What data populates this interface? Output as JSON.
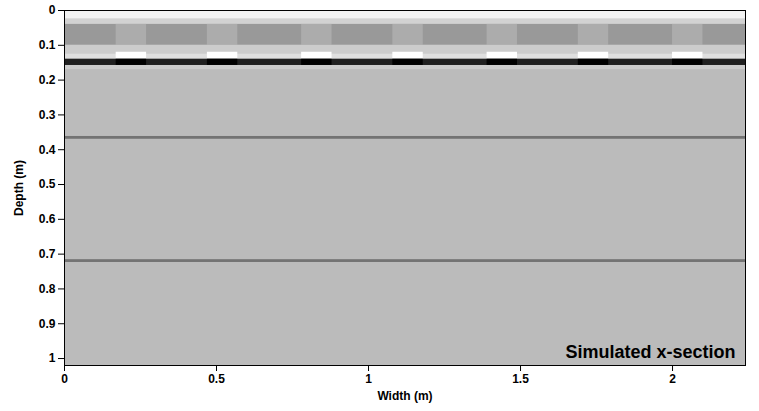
{
  "chart_data": {
    "type": "heatmap",
    "annotation": "Simulated x-section",
    "xlabel": "Width (m)",
    "ylabel": "Depth (m)",
    "xlim": [
      0,
      2.24
    ],
    "ylim": [
      0,
      1.02
    ],
    "xticks": [
      0,
      0.5,
      1,
      1.5,
      2
    ],
    "yticks": [
      0,
      0.1,
      0.2,
      0.3,
      0.4,
      0.5,
      0.6,
      0.7,
      0.8,
      0.9,
      1
    ],
    "value_range": [
      -1,
      1
    ],
    "cells": [
      {
        "x": [
          0,
          2.24
        ],
        "y": [
          0,
          1.02
        ],
        "value": 0.47
      },
      {
        "x": [
          0,
          2.24
        ],
        "y": [
          0,
          0.025
        ],
        "value": 0.9
      },
      {
        "x": [
          0,
          2.24
        ],
        "y": [
          0.025,
          0.04
        ],
        "value": 0.65
      },
      {
        "x": [
          0,
          2.24
        ],
        "y": [
          0.04,
          0.1
        ],
        "value": 0.2
      },
      {
        "x": [
          0.17,
          0.27
        ],
        "y": [
          0.04,
          0.1
        ],
        "value": 0.35
      },
      {
        "x": [
          0.47,
          0.57
        ],
        "y": [
          0.04,
          0.1
        ],
        "value": 0.35
      },
      {
        "x": [
          0.78,
          0.88
        ],
        "y": [
          0.04,
          0.1
        ],
        "value": 0.35
      },
      {
        "x": [
          1.08,
          1.18
        ],
        "y": [
          0.04,
          0.1
        ],
        "value": 0.35
      },
      {
        "x": [
          1.39,
          1.49
        ],
        "y": [
          0.04,
          0.1
        ],
        "value": 0.35
      },
      {
        "x": [
          1.69,
          1.79
        ],
        "y": [
          0.04,
          0.1
        ],
        "value": 0.35
      },
      {
        "x": [
          2.0,
          2.1
        ],
        "y": [
          0.04,
          0.1
        ],
        "value": 0.35
      },
      {
        "x": [
          0,
          2.24
        ],
        "y": [
          0.1,
          0.125
        ],
        "value": 0.6
      },
      {
        "x": [
          0,
          2.24
        ],
        "y": [
          0.125,
          0.14
        ],
        "value": 0.75
      },
      {
        "x": [
          0.17,
          0.27
        ],
        "y": [
          0.12,
          0.14
        ],
        "value": 1
      },
      {
        "x": [
          0.47,
          0.57
        ],
        "y": [
          0.12,
          0.14
        ],
        "value": 1
      },
      {
        "x": [
          0.78,
          0.88
        ],
        "y": [
          0.12,
          0.14
        ],
        "value": 1
      },
      {
        "x": [
          1.08,
          1.18
        ],
        "y": [
          0.12,
          0.14
        ],
        "value": 1
      },
      {
        "x": [
          1.39,
          1.49
        ],
        "y": [
          0.12,
          0.14
        ],
        "value": 1
      },
      {
        "x": [
          1.69,
          1.79
        ],
        "y": [
          0.12,
          0.14
        ],
        "value": 1
      },
      {
        "x": [
          2.0,
          2.1
        ],
        "y": [
          0.12,
          0.14
        ],
        "value": 1
      },
      {
        "x": [
          0,
          2.24
        ],
        "y": [
          0.14,
          0.158
        ],
        "value": -0.75
      },
      {
        "x": [
          0.17,
          0.27
        ],
        "y": [
          0.14,
          0.158
        ],
        "value": -1
      },
      {
        "x": [
          0.47,
          0.57
        ],
        "y": [
          0.14,
          0.158
        ],
        "value": -1
      },
      {
        "x": [
          0.78,
          0.88
        ],
        "y": [
          0.14,
          0.158
        ],
        "value": -1
      },
      {
        "x": [
          1.08,
          1.18
        ],
        "y": [
          0.14,
          0.158
        ],
        "value": -1
      },
      {
        "x": [
          1.39,
          1.49
        ],
        "y": [
          0.14,
          0.158
        ],
        "value": -1
      },
      {
        "x": [
          1.69,
          1.79
        ],
        "y": [
          0.14,
          0.158
        ],
        "value": -1
      },
      {
        "x": [
          2.0,
          2.1
        ],
        "y": [
          0.14,
          0.158
        ],
        "value": -1
      },
      {
        "x": [
          0,
          2.24
        ],
        "y": [
          0.158,
          0.17
        ],
        "value": 0.6
      },
      {
        "x": [
          0,
          2.24
        ],
        "y": [
          0.362,
          0.37
        ],
        "value": -0.1
      },
      {
        "x": [
          0,
          2.24
        ],
        "y": [
          0.716,
          0.724
        ],
        "value": -0.1
      }
    ]
  }
}
